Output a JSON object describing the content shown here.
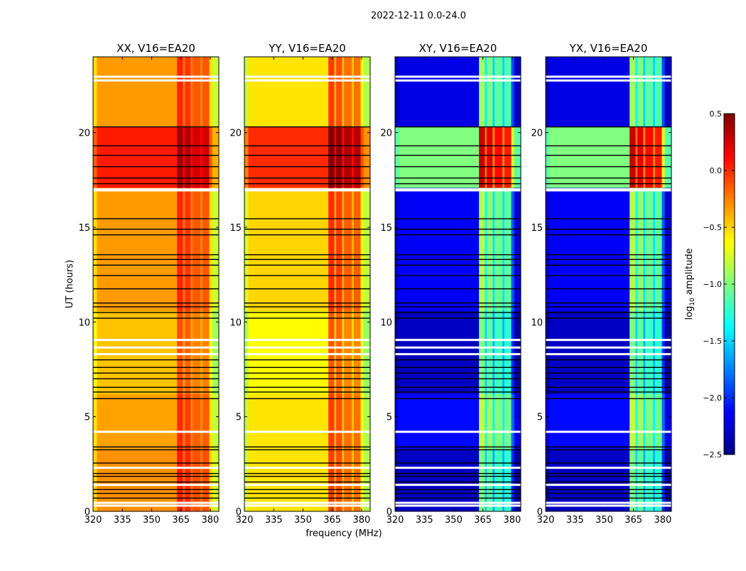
{
  "chart_data": {
    "type": "heatmap",
    "title": "2022-12-11 0.0-24.0",
    "xlabel": "frequency (MHz)",
    "ylabel": "UT (hours)",
    "xlim": [
      320,
      384.4
    ],
    "ylim": [
      0,
      24
    ],
    "xticks": [
      320,
      335,
      350,
      365,
      380
    ],
    "yticks": [
      0,
      5,
      10,
      15,
      20
    ],
    "colorbar": {
      "label": "log10 amplitude",
      "label_base": "log",
      "label_sub": "10",
      "label_rest": " amplitude",
      "range": [
        -2.5,
        0.5
      ],
      "ticks": [
        "0.5",
        "0.0",
        "−0.5",
        "−1.0",
        "−1.5",
        "−2.0",
        "−2.5"
      ],
      "tick_values": [
        0.5,
        0,
        -0.5,
        -1,
        -1.5,
        -2,
        -2.5
      ],
      "colormap": "jet"
    },
    "flagged_hours_white": [
      0.3,
      0.45,
      1.4,
      2.3,
      4.2,
      8.3,
      8.65,
      9.05,
      16.95,
      17.0,
      22.75,
      22.95
    ],
    "black_line_hours": [
      0.7,
      0.95,
      1.15,
      1.55,
      1.85,
      2.0,
      2.55,
      3.25,
      3.4,
      5.95,
      6.3,
      6.55,
      7.0,
      7.3,
      7.6,
      8.0,
      10.2,
      10.5,
      10.8,
      11.0,
      11.75,
      12.45,
      13.0,
      13.3,
      13.55,
      14.6,
      14.9,
      15.45,
      17.3,
      17.6,
      18.2,
      18.8,
      19.3,
      20.3
    ],
    "panels": [
      {
        "title": "XX, V16=EA20",
        "cross": false,
        "segments": [
          [
            0,
            3.3,
            -0.3
          ],
          [
            3.3,
            6.2,
            -0.35
          ],
          [
            6.2,
            10.6,
            -0.45
          ],
          [
            10.6,
            17.1,
            -0.33
          ],
          [
            17.1,
            20.3,
            0.05
          ],
          [
            20.3,
            24,
            -0.33
          ]
        ],
        "columns": [
          [
            320,
            322,
            -0.2
          ],
          [
            322,
            363,
            0
          ],
          [
            363,
            366,
            0.35
          ],
          [
            366,
            367,
            0.1
          ],
          [
            367,
            370,
            0.3
          ],
          [
            370,
            371,
            0.05
          ],
          [
            371,
            375,
            0.2
          ],
          [
            375,
            376,
            0.05
          ],
          [
            376,
            379.5,
            0.2
          ],
          [
            379.5,
            381,
            -0.2
          ],
          [
            381,
            384.4,
            -0.45
          ]
        ]
      },
      {
        "title": "YY, V16=EA20",
        "cross": false,
        "segments": [
          [
            0,
            3.3,
            -0.55
          ],
          [
            3.3,
            6.2,
            -0.55
          ],
          [
            6.2,
            10.6,
            -0.62
          ],
          [
            10.6,
            17.1,
            -0.5
          ],
          [
            17.1,
            20.3,
            0.0
          ],
          [
            20.3,
            24,
            -0.55
          ]
        ],
        "columns": [
          [
            320,
            322,
            -0.25
          ],
          [
            322,
            363,
            0
          ],
          [
            363,
            366,
            0.5
          ],
          [
            366,
            367,
            0.15
          ],
          [
            367,
            370,
            0.45
          ],
          [
            370,
            371,
            0.1
          ],
          [
            371,
            375,
            0.35
          ],
          [
            375,
            376,
            0.1
          ],
          [
            376,
            379.5,
            0.35
          ],
          [
            379.5,
            381,
            -0.1
          ],
          [
            381,
            384.4,
            -0.3
          ]
        ]
      },
      {
        "title": "XY, V16=EA20",
        "cross": true,
        "segments": [
          [
            0,
            3.3,
            -2.3
          ],
          [
            3.3,
            6.2,
            -2.1
          ],
          [
            6.2,
            10.6,
            -2.3
          ],
          [
            10.6,
            17.1,
            -2.15
          ],
          [
            17.1,
            20.3,
            -1.0
          ],
          [
            20.3,
            24,
            -2.2
          ]
        ],
        "columns": [
          [
            320,
            322,
            -0.1
          ],
          [
            322,
            363,
            0
          ],
          [
            363,
            366,
            1.3
          ],
          [
            366,
            367,
            0.8
          ],
          [
            367,
            370,
            1.2
          ],
          [
            370,
            371,
            0.7
          ],
          [
            371,
            375,
            1.1
          ],
          [
            375,
            376,
            0.7
          ],
          [
            376,
            379.5,
            1.05
          ],
          [
            379.5,
            381,
            0.3
          ],
          [
            381,
            384.4,
            -0.1
          ]
        ]
      },
      {
        "title": "YX, V16=EA20",
        "cross": true,
        "segments": [
          [
            0,
            3.3,
            -2.3
          ],
          [
            3.3,
            6.2,
            -2.1
          ],
          [
            6.2,
            10.6,
            -2.3
          ],
          [
            10.6,
            17.1,
            -2.15
          ],
          [
            17.1,
            20.3,
            -1.0
          ],
          [
            20.3,
            24,
            -2.2
          ]
        ],
        "columns": [
          [
            320,
            322,
            -0.1
          ],
          [
            322,
            363,
            0
          ],
          [
            363,
            366,
            1.3
          ],
          [
            366,
            367,
            0.8
          ],
          [
            367,
            370,
            1.2
          ],
          [
            370,
            371,
            0.7
          ],
          [
            371,
            375,
            1.1
          ],
          [
            375,
            376,
            0.7
          ],
          [
            376,
            379.5,
            1.05
          ],
          [
            379.5,
            381,
            0.3
          ],
          [
            381,
            384.4,
            -0.1
          ]
        ]
      }
    ]
  }
}
